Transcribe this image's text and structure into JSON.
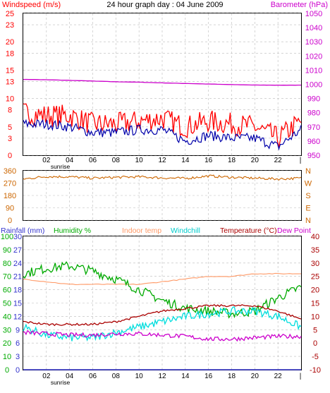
{
  "header": {
    "wind_title": "Windspeed (m/s)",
    "main_title": "24 hour graph day : 04 June 2009",
    "baro_title": "Barometer (hPa)"
  },
  "colors": {
    "wind_speed": "#ff0000",
    "wind_avg": "#0000aa",
    "barometer": "#cc00cc",
    "direction": "#cc6600",
    "humidity": "#00aa00",
    "indoor_temp": "#ff9966",
    "windchill": "#00dddd",
    "temperature": "#aa0000",
    "dew_point": "#cc00cc",
    "rainfall": "#3333cc",
    "grid": "#bbbbbb"
  },
  "x_axis": {
    "tick_labels": [
      "02",
      "04",
      "06",
      "08",
      "10",
      "12",
      "14",
      "16",
      "18",
      "20",
      "22"
    ],
    "sunrise_label": "sunrise"
  },
  "chart_data": [
    {
      "type": "line",
      "title": "Windspeed (m/s) / Barometer (hPa)",
      "left_axis": {
        "label": "Windspeed (m/s)",
        "ylim": [
          0,
          25
        ],
        "ticks": [
          0,
          3,
          5,
          8,
          10,
          13,
          15,
          18,
          20,
          23,
          25
        ]
      },
      "right_axis": {
        "label": "Barometer (hPa)",
        "ylim": [
          950,
          1050
        ],
        "ticks": [
          950,
          960,
          970,
          980,
          990,
          1000,
          1010,
          1020,
          1030,
          1040,
          1050
        ]
      },
      "x": [
        0,
        2,
        4,
        6,
        8,
        10,
        12,
        14,
        16,
        18,
        20,
        22,
        24
      ],
      "series": [
        {
          "name": "Barometer",
          "axis": "right",
          "values": [
            1003.5,
            1003.2,
            1002.8,
            1002.3,
            1001.8,
            1001.5,
            1001.0,
            1000.6,
            1000.2,
            999.8,
            999.5,
            999.4,
            999.4
          ]
        },
        {
          "name": "Windspeed",
          "axis": "left",
          "values": [
            7.5,
            7.0,
            7.0,
            5.5,
            5.5,
            6.0,
            6.5,
            5.0,
            6.0,
            5.5,
            5.0,
            3.0,
            6.0
          ]
        },
        {
          "name": "Average",
          "axis": "left",
          "values": [
            5.5,
            5.5,
            5.0,
            4.0,
            4.0,
            4.5,
            4.5,
            2.5,
            3.5,
            3.0,
            3.0,
            1.5,
            4.5
          ]
        }
      ],
      "grid": true
    },
    {
      "type": "line",
      "title": "Wind direction",
      "left_axis": {
        "ylim": [
          0,
          360
        ],
        "ticks": [
          0,
          90,
          180,
          270,
          360
        ]
      },
      "right_axis": {
        "labels": [
          "N",
          "E",
          "S",
          "W",
          "N"
        ]
      },
      "x": [
        0,
        2,
        4,
        6,
        8,
        10,
        12,
        14,
        16,
        18,
        20,
        22,
        24
      ],
      "series": [
        {
          "name": "Direction",
          "values": [
            300,
            318,
            316,
            306,
            312,
            316,
            308,
            304,
            322,
            312,
            306,
            300,
            306
          ]
        }
      ],
      "grid": true
    },
    {
      "type": "line",
      "title": "Rainfall / Humidity / Temperature",
      "legend": [
        "Rainfall (mm)",
        "Humidity %",
        "Indoor temp",
        "Windchill",
        "Temperature (°C)",
        "Dew Point"
      ],
      "rain_axis": {
        "label": "Rainfall (mm)",
        "ylim": [
          0,
          30
        ],
        "ticks": [
          0,
          3,
          6,
          9,
          12,
          15,
          18,
          21,
          24,
          27,
          30
        ]
      },
      "humidity_axis": {
        "label": "Humidity %",
        "ylim": [
          0,
          100
        ],
        "ticks": [
          0,
          10,
          20,
          30,
          40,
          50,
          60,
          70,
          80,
          90,
          100
        ]
      },
      "temp_axis": {
        "label": "Temperature (°C)",
        "ylim": [
          -10,
          40
        ],
        "ticks": [
          -10,
          -5,
          0,
          5,
          10,
          15,
          20,
          25,
          30,
          35,
          40
        ]
      },
      "x": [
        0,
        2,
        4,
        6,
        8,
        10,
        12,
        14,
        16,
        18,
        20,
        22,
        24
      ],
      "series": [
        {
          "name": "Humidity %",
          "axis": "humidity",
          "values": [
            72,
            76,
            78,
            74,
            68,
            60,
            52,
            46,
            44,
            42,
            44,
            54,
            62
          ]
        },
        {
          "name": "Indoor temp",
          "axis": "temp",
          "values": [
            24,
            23,
            22,
            22,
            22,
            22,
            23,
            24,
            25,
            25,
            26,
            26,
            26
          ]
        },
        {
          "name": "Windchill",
          "axis": "temp",
          "values": [
            6,
            3,
            2,
            2,
            4,
            6,
            8,
            10,
            11,
            12,
            12,
            10,
            6
          ]
        },
        {
          "name": "Temperature (°C)",
          "axis": "temp",
          "values": [
            8,
            7,
            7,
            7,
            8,
            10,
            12,
            13,
            14,
            14,
            14,
            12,
            9
          ]
        },
        {
          "name": "Dew Point",
          "axis": "temp",
          "values": [
            4,
            3.5,
            3,
            3,
            3.5,
            3.5,
            3,
            2.5,
            1.5,
            1.5,
            2,
            2.5,
            2.5
          ]
        },
        {
          "name": "Rainfall (mm)",
          "axis": "rain",
          "values": [
            0,
            0,
            0,
            0,
            0,
            0,
            0,
            0,
            0,
            0,
            0,
            0,
            0
          ]
        }
      ],
      "grid": true
    }
  ]
}
